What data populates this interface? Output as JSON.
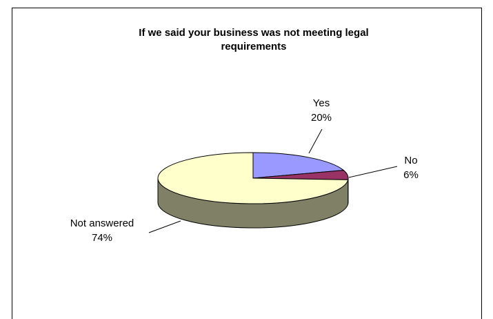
{
  "chart_data": {
    "type": "pie",
    "title": "If we said your business was not meeting legal requirements",
    "categories": [
      "Yes",
      "No",
      "Not answered"
    ],
    "values": [
      20,
      6,
      74
    ],
    "value_labels": [
      "20%",
      "6%",
      "74%"
    ],
    "colors": [
      "#9999ff",
      "#993366",
      "#ffffcc"
    ],
    "side_colors": [
      "#4d4d80",
      "#4d1a33",
      "#808066"
    ]
  }
}
